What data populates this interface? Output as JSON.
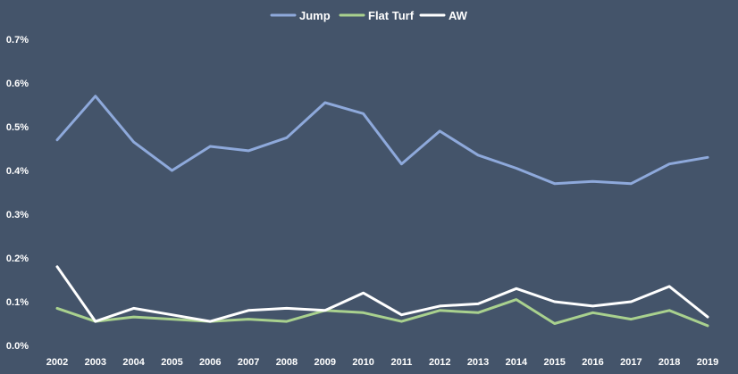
{
  "chart_data": {
    "type": "line",
    "title": "",
    "xlabel": "",
    "ylabel": "",
    "x": [
      "2002",
      "2003",
      "2004",
      "2005",
      "2006",
      "2007",
      "2008",
      "2009",
      "2010",
      "2011",
      "2012",
      "2013",
      "2014",
      "2015",
      "2016",
      "2017",
      "2018",
      "2019"
    ],
    "ylim": [
      0,
      0.7
    ],
    "yticks": [
      "0.0%",
      "0.1%",
      "0.2%",
      "0.3%",
      "0.4%",
      "0.5%",
      "0.6%",
      "0.7%"
    ],
    "y_unit": "%",
    "grid": false,
    "legend_position": "top-center",
    "background_color": "#44546a",
    "series": [
      {
        "name": "Jump",
        "color": "#8ea9db",
        "values": [
          0.47,
          0.57,
          0.465,
          0.4,
          0.455,
          0.445,
          0.475,
          0.555,
          0.53,
          0.415,
          0.49,
          0.435,
          0.405,
          0.37,
          0.375,
          0.37,
          0.415,
          0.43
        ]
      },
      {
        "name": "Flat Turf",
        "color": "#a9d18e",
        "values": [
          0.085,
          0.055,
          0.065,
          0.06,
          0.055,
          0.06,
          0.055,
          0.08,
          0.075,
          0.055,
          0.08,
          0.075,
          0.105,
          0.05,
          0.075,
          0.06,
          0.08,
          0.045
        ]
      },
      {
        "name": "AW",
        "color": "#ffffff",
        "values": [
          0.18,
          0.055,
          0.085,
          0.07,
          0.055,
          0.08,
          0.085,
          0.08,
          0.12,
          0.07,
          0.09,
          0.095,
          0.13,
          0.1,
          0.09,
          0.1,
          0.135,
          0.065
        ]
      }
    ]
  }
}
